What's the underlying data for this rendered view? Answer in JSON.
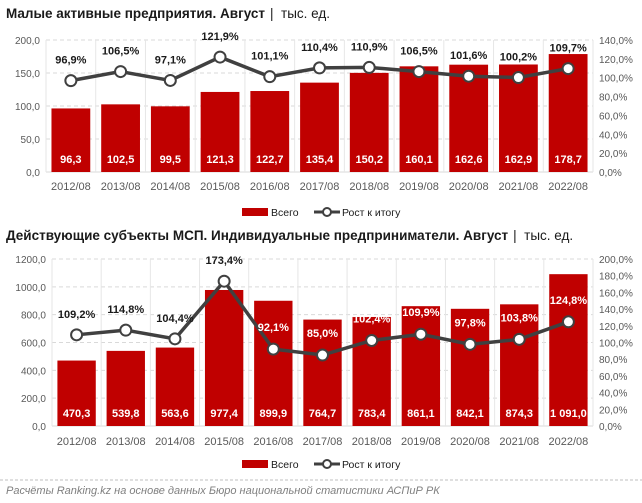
{
  "chart_data": [
    {
      "type": "bar",
      "title": "Малые активные предприятия. Август",
      "unit": "тыс. ед.",
      "categories": [
        "2012/08",
        "2013/08",
        "2014/08",
        "2015/08",
        "2016/08",
        "2017/08",
        "2018/08",
        "2019/08",
        "2020/08",
        "2021/08",
        "2022/08"
      ],
      "series": [
        {
          "name": "Всего",
          "type": "bar",
          "axis": "left",
          "values": [
            96.3,
            102.5,
            99.5,
            121.3,
            122.7,
            135.4,
            150.2,
            160.1,
            162.6,
            162.9,
            178.7
          ],
          "labels": [
            "96,3",
            "102,5",
            "99,5",
            "121,3",
            "122,7",
            "135,4",
            "150,2",
            "160,1",
            "162,6",
            "162,9",
            "178,7"
          ]
        },
        {
          "name": "Рост к итогу",
          "type": "line",
          "axis": "right",
          "values": [
            96.9,
            106.5,
            97.1,
            121.9,
            101.1,
            110.4,
            110.9,
            106.5,
            101.6,
            100.2,
            109.7
          ],
          "labels": [
            "96,9%",
            "106,5%",
            "97,1%",
            "121,9%",
            "101,1%",
            "110,4%",
            "110,9%",
            "106,5%",
            "101,6%",
            "100,2%",
            "109,7%"
          ]
        }
      ],
      "ylim": [
        0,
        200
      ],
      "y2lim": [
        0,
        140
      ],
      "yticks": [
        "0,0",
        "50,0",
        "100,0",
        "150,0",
        "200,0"
      ],
      "y2ticks": [
        "0,0%",
        "20,0%",
        "40,0%",
        "60,0%",
        "80,0%",
        "100,0%",
        "120,0%",
        "140,0%"
      ],
      "legend": "bottom",
      "grid": true
    },
    {
      "type": "bar",
      "title": "Действующие субъекты МСП. Индивидуальные предприниматели. Август",
      "unit": "тыс. ед.",
      "categories": [
        "2012/08",
        "2013/08",
        "2014/08",
        "2015/08",
        "2016/08",
        "2017/08",
        "2018/08",
        "2019/08",
        "2020/08",
        "2021/08",
        "2022/08"
      ],
      "series": [
        {
          "name": "Всего",
          "type": "bar",
          "axis": "left",
          "values": [
            470.3,
            539.8,
            563.6,
            977.4,
            899.9,
            764.7,
            783.4,
            861.1,
            842.1,
            874.3,
            1091.0
          ],
          "labels": [
            "470,3",
            "539,8",
            "563,6",
            "977,4",
            "899,9",
            "764,7",
            "783,4",
            "861,1",
            "842,1",
            "874,3",
            "1 091,0"
          ]
        },
        {
          "name": "Рост к итогу",
          "type": "line",
          "axis": "right",
          "values": [
            109.2,
            114.8,
            104.4,
            173.4,
            92.1,
            85.0,
            102.4,
            109.9,
            97.8,
            103.8,
            124.8
          ],
          "labels": [
            "109,2%",
            "114,8%",
            "104,4%",
            "173,4%",
            "92,1%",
            "85,0%",
            "102,4%",
            "109,9%",
            "97,8%",
            "103,8%",
            "124,8%"
          ]
        }
      ],
      "ylim": [
        0,
        1200
      ],
      "y2lim": [
        0,
        200
      ],
      "yticks": [
        "0,0",
        "200,0",
        "400,0",
        "600,0",
        "800,0",
        "1000,0",
        "1200,0"
      ],
      "y2ticks": [
        "0,0%",
        "20,0%",
        "40,0%",
        "60,0%",
        "80,0%",
        "100,0%",
        "120,0%",
        "140,0%",
        "160,0%",
        "180,0%",
        "200,0%"
      ],
      "legend": "bottom",
      "grid": true
    }
  ],
  "colors": {
    "bar": "#c00000",
    "line": "#404040",
    "grid": "#d9d9d9"
  },
  "footer": "Расчёты Ranking.kz на основе данных Бюро национальной статистики АСПиР РК",
  "separator": "|"
}
